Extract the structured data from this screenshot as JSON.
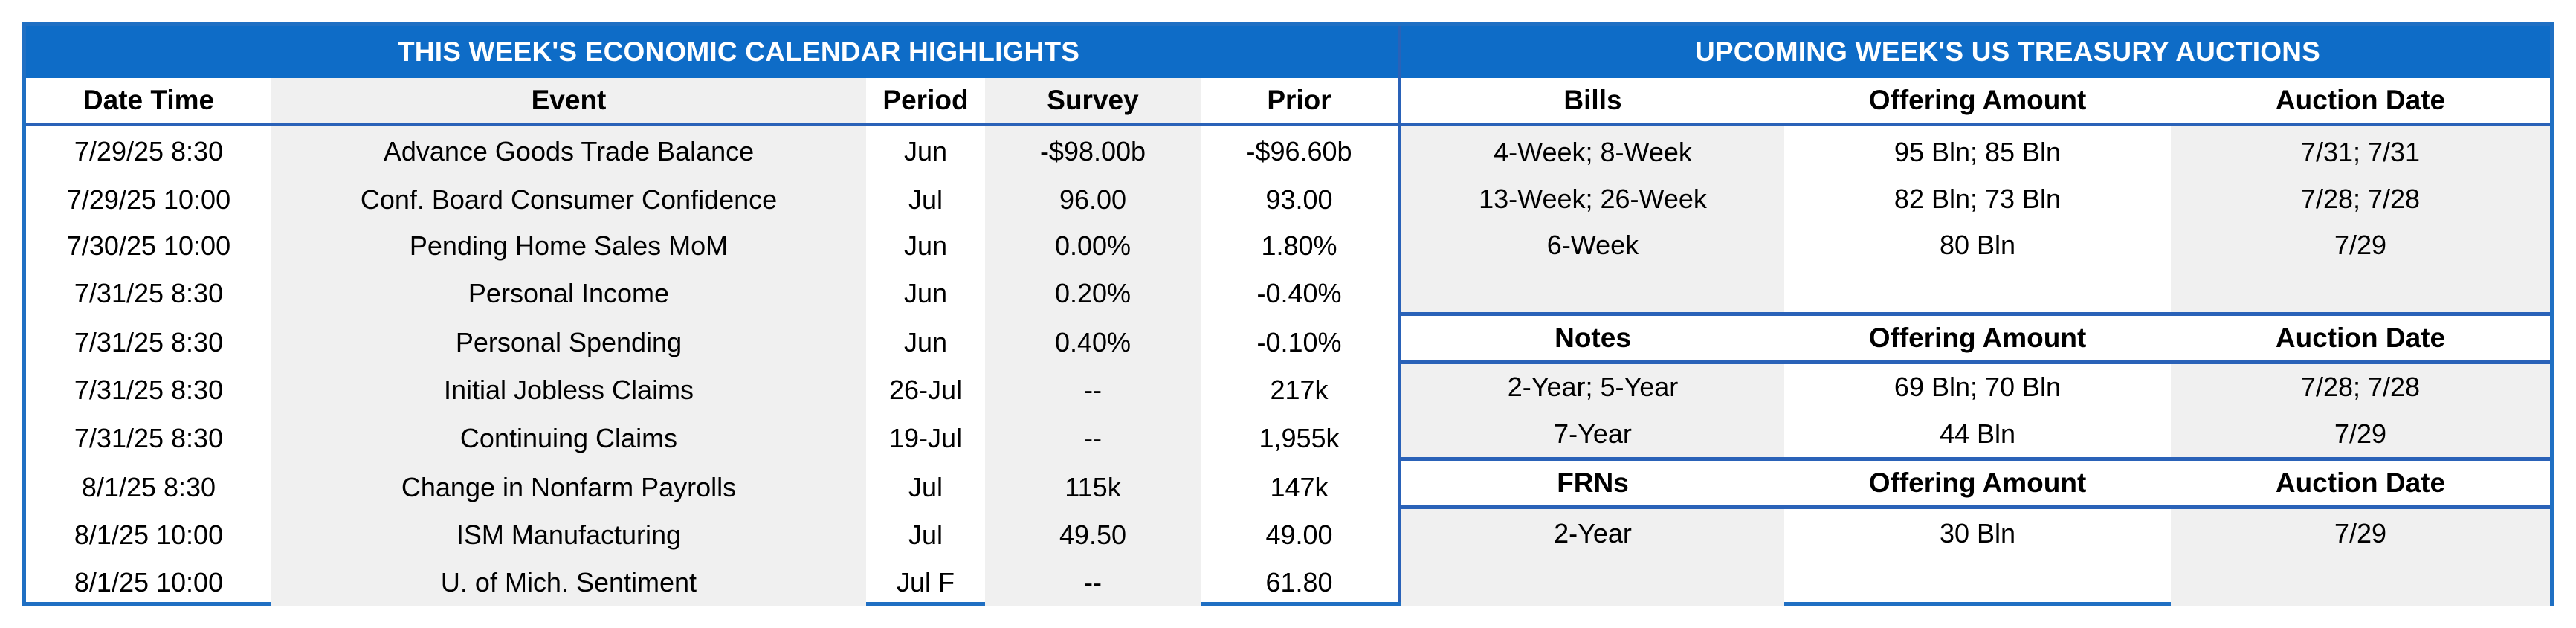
{
  "calendar": {
    "title": "THIS WEEK'S ECONOMIC CALENDAR HIGHLIGHTS",
    "headers": [
      "Date Time",
      "Event",
      "Period",
      "Survey",
      "Prior"
    ],
    "rows": [
      {
        "datetime": "7/29/25 8:30",
        "event": "Advance Goods Trade Balance",
        "period": "Jun",
        "survey": "-$98.00b",
        "prior": "-$96.60b"
      },
      {
        "datetime": "7/29/25 10:00",
        "event": "Conf. Board Consumer Confidence",
        "period": "Jul",
        "survey": "96.00",
        "prior": "93.00"
      },
      {
        "datetime": "7/30/25 10:00",
        "event": "Pending Home Sales MoM",
        "period": "Jun",
        "survey": "0.00%",
        "prior": "1.80%"
      },
      {
        "datetime": "7/31/25 8:30",
        "event": "Personal Income",
        "period": "Jun",
        "survey": "0.20%",
        "prior": "-0.40%"
      },
      {
        "datetime": "7/31/25 8:30",
        "event": "Personal Spending",
        "period": "Jun",
        "survey": "0.40%",
        "prior": "-0.10%"
      },
      {
        "datetime": "7/31/25 8:30",
        "event": "Initial Jobless Claims",
        "period": "26-Jul",
        "survey": "--",
        "prior": "217k"
      },
      {
        "datetime": "7/31/25 8:30",
        "event": "Continuing Claims",
        "period": "19-Jul",
        "survey": "--",
        "prior": "1,955k"
      },
      {
        "datetime": "8/1/25 8:30",
        "event": "Change in Nonfarm Payrolls",
        "period": "Jul",
        "survey": "115k",
        "prior": "147k"
      },
      {
        "datetime": "8/1/25 10:00",
        "event": "ISM Manufacturing",
        "period": "Jul",
        "survey": "49.50",
        "prior": "49.00"
      },
      {
        "datetime": "8/1/25 10:00",
        "event": "U. of Mich. Sentiment",
        "period": "Jul F",
        "survey": "--",
        "prior": "61.80"
      }
    ]
  },
  "auctions": {
    "title": "UPCOMING WEEK'S US TREASURY AUCTIONS",
    "bills": {
      "headers": [
        "Bills",
        "Offering Amount",
        "Auction Date"
      ],
      "rows": [
        {
          "term": "4-Week; 8-Week",
          "amount": "95 Bln; 85 Bln",
          "date": "7/31; 7/31"
        },
        {
          "term": "13-Week; 26-Week",
          "amount": "82 Bln; 73 Bln",
          "date": "7/28; 7/28"
        },
        {
          "term": "6-Week",
          "amount": "80 Bln",
          "date": "7/29"
        }
      ]
    },
    "notes": {
      "headers": [
        "Notes",
        "Offering Amount",
        "Auction Date"
      ],
      "rows": [
        {
          "term": "2-Year; 5-Year",
          "amount": "69 Bln; 70 Bln",
          "date": "7/28; 7/28"
        },
        {
          "term": "7-Year",
          "amount": "44 Bln",
          "date": "7/29"
        }
      ]
    },
    "frns": {
      "headers": [
        "FRNs",
        "Offering Amount",
        "Auction Date"
      ],
      "rows": [
        {
          "term": "2-Year",
          "amount": "30 Bln",
          "date": "7/29"
        }
      ]
    }
  },
  "colors": {
    "band": "#0e6cc7",
    "rule": "#2a62b8",
    "shade": "#f0f0f0"
  }
}
